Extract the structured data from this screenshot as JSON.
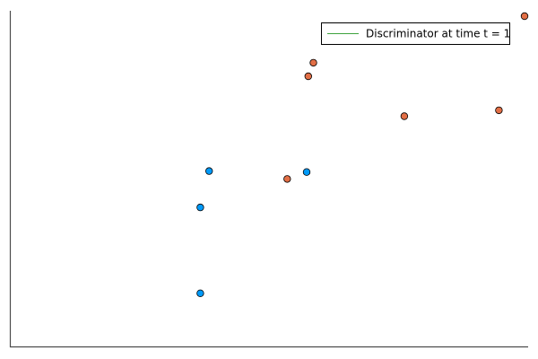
{
  "chart_data": {
    "type": "scatter",
    "title": "",
    "xlabel": "",
    "ylabel": "",
    "grid": false,
    "legend_placement": "top-right",
    "legend_entries": [
      {
        "label": "Discriminator at time t = 1",
        "color": "#3da33d",
        "kind": "line"
      }
    ],
    "xlim": [
      0,
      1
    ],
    "ylim": [
      0,
      1
    ],
    "series": [
      {
        "color": "#009af9",
        "points": [
          {
            "x": 0.386,
            "y": 0.531
          },
          {
            "x": 0.369,
            "y": 0.421
          },
          {
            "x": 0.369,
            "y": 0.161
          },
          {
            "x": 0.576,
            "y": 0.528
          }
        ]
      },
      {
        "color": "#e26f46",
        "points": [
          {
            "x": 0.538,
            "y": 0.507
          },
          {
            "x": 0.589,
            "y": 0.859
          },
          {
            "x": 0.579,
            "y": 0.818
          },
          {
            "x": 0.766,
            "y": 0.697
          },
          {
            "x": 0.95,
            "y": 0.715
          },
          {
            "x": 1.0,
            "y": 1.0
          }
        ]
      }
    ]
  }
}
